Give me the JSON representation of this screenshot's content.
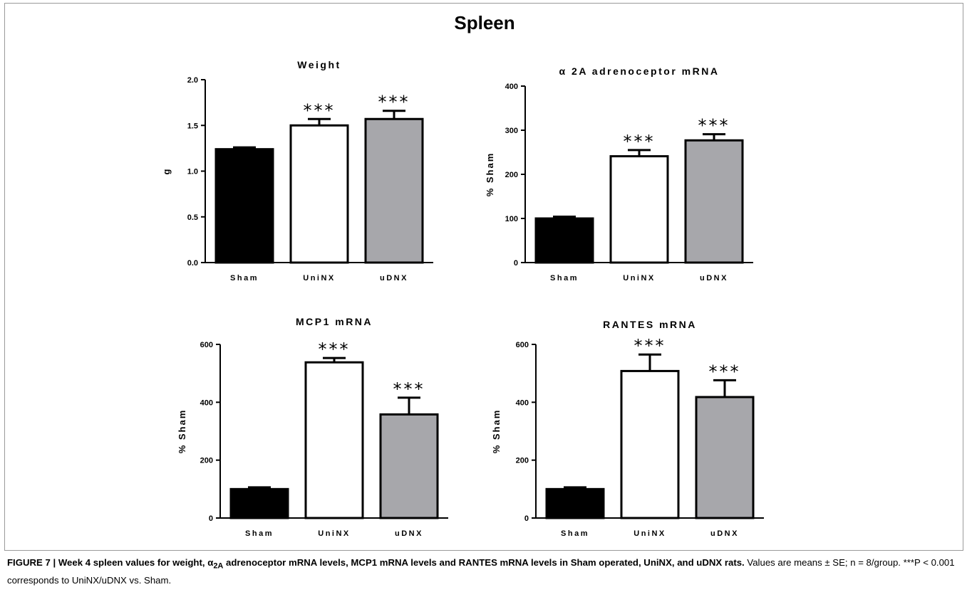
{
  "figure": {
    "title": "Spleen",
    "caption": {
      "bold_prefix": "FIGURE 7 | Week 4 spleen values for weight, α",
      "bold_sub": "2A",
      "bold_suffix": " adrenoceptor mRNA levels, MCP1 mRNA levels and RANTES mRNA levels in Sham operated, UniNX, and uDNX rats.",
      "text": " Values are means ± SE; n = 8/group. ***P < 0.001 corresponds to UniNX/uDNX vs. Sham."
    }
  },
  "colors": {
    "sham": "#000000",
    "uninx": "#ffffff",
    "udnx": "#a7a7ab"
  },
  "chart_data": [
    {
      "type": "bar",
      "title": "Weight",
      "ylabel": "g",
      "categories": [
        "Sham",
        "UniNX",
        "uDNX"
      ],
      "values": [
        1.24,
        1.5,
        1.57
      ],
      "errors": [
        0.02,
        0.07,
        0.09
      ],
      "significance": [
        "",
        "***",
        "***"
      ],
      "ylim": [
        0,
        2.0
      ],
      "yticks": [
        0.0,
        0.5,
        1.0,
        1.5,
        2.0
      ],
      "ytick_labels": [
        "0.0",
        "0.5",
        "1.0",
        "1.5",
        "2.0"
      ]
    },
    {
      "type": "bar",
      "title": "α 2A adrenoceptor mRNA",
      "ylabel": "% Sham",
      "categories": [
        "Sham",
        "UniNX",
        "uDNX"
      ],
      "values": [
        100,
        241,
        277
      ],
      "errors": [
        4,
        14,
        14
      ],
      "significance": [
        "",
        "***",
        "***"
      ],
      "ylim": [
        0,
        400
      ],
      "yticks": [
        0,
        100,
        200,
        300,
        400
      ],
      "ytick_labels": [
        "0",
        "100",
        "200",
        "300",
        "400"
      ]
    },
    {
      "type": "bar",
      "title": "MCP1 mRNA",
      "ylabel": "% Sham",
      "categories": [
        "Sham",
        "UniNX",
        "uDNX"
      ],
      "values": [
        100,
        538,
        358
      ],
      "errors": [
        6,
        15,
        58
      ],
      "significance": [
        "",
        "***",
        "***"
      ],
      "ylim": [
        0,
        600
      ],
      "yticks": [
        0,
        200,
        400,
        600
      ],
      "ytick_labels": [
        "0",
        "200",
        "400",
        "600"
      ]
    },
    {
      "type": "bar",
      "title": "RANTES mRNA",
      "ylabel": "% Sham",
      "categories": [
        "Sham",
        "UniNX",
        "uDNX"
      ],
      "values": [
        100,
        508,
        418
      ],
      "errors": [
        6,
        57,
        58
      ],
      "significance": [
        "",
        "***",
        "***"
      ],
      "ylim": [
        0,
        600
      ],
      "yticks": [
        0,
        200,
        400,
        600
      ],
      "ytick_labels": [
        "0",
        "200",
        "400",
        "600"
      ]
    }
  ]
}
